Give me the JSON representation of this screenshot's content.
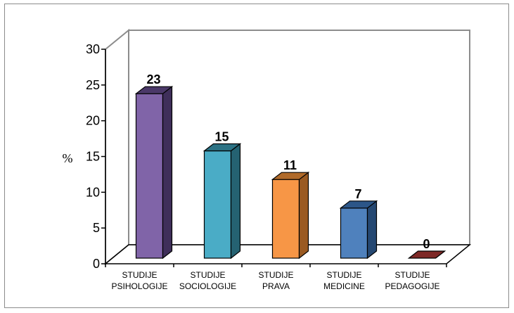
{
  "chart_data": {
    "type": "bar",
    "categories": [
      [
        "STUDIJE",
        "PSIHOLOGIJE"
      ],
      [
        "STUDIJE",
        "SOCIOLOGIJE"
      ],
      [
        "STUDIJE",
        "PRAVA"
      ],
      [
        "STUDIJE",
        "MEDICINE"
      ],
      [
        "STUDIJE",
        "PEDAGOGIJE"
      ]
    ],
    "values": [
      23,
      15,
      11,
      7,
      0
    ],
    "data_labels": [
      "23",
      "15",
      "11",
      "7",
      "0"
    ],
    "ylabel": "%",
    "ylim": [
      0,
      30
    ],
    "yticks": [
      "0",
      "5",
      "10",
      "15",
      "20",
      "25",
      "30"
    ],
    "grid": false,
    "legend": "none",
    "colors": [
      {
        "front": "#8064a8",
        "side": "#3f2f5a",
        "top": "#4a3868"
      },
      {
        "front": "#4aacc6",
        "side": "#256272",
        "top": "#2c7284"
      },
      {
        "front": "#f79646",
        "side": "#9a5a22",
        "top": "#b06a2a"
      },
      {
        "front": "#4f81bd",
        "side": "#254872",
        "top": "#2c5688"
      },
      {
        "front": "#c0504d",
        "side": "#6e2220",
        "top": "#7e2826"
      }
    ]
  }
}
